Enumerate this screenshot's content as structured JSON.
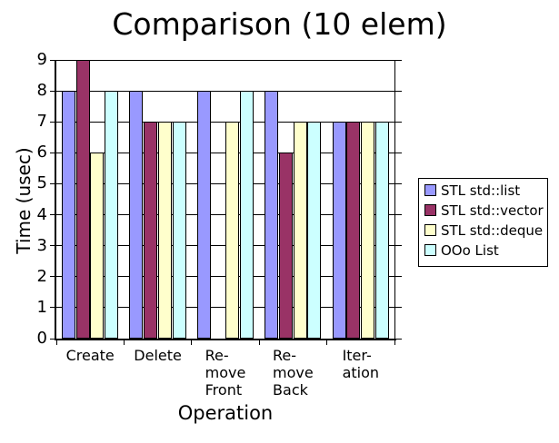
{
  "chart_data": {
    "type": "bar",
    "title": "Comparison (10 elem)",
    "xlabel": "Operation",
    "ylabel": "Time (usec)",
    "ylim": [
      0,
      9
    ],
    "y_ticks": [
      0,
      1,
      2,
      3,
      4,
      5,
      6,
      7,
      8,
      9
    ],
    "grid": "horizontal",
    "legend_position": "right",
    "categories": [
      "Create",
      "Delete",
      "Re-\nmove\nFront",
      "Re-\nmove\nBack",
      "Iter-\nation"
    ],
    "series": [
      {
        "name": "STL std::list",
        "color": "#9999FF",
        "values": [
          8,
          8,
          8,
          8,
          7
        ]
      },
      {
        "name": "STL std::vector",
        "color": "#993366",
        "values": [
          9,
          7,
          0,
          6,
          7
        ]
      },
      {
        "name": "STL std::deque",
        "color": "#FFFFCC",
        "values": [
          6,
          7,
          7,
          7,
          7
        ]
      },
      {
        "name": "OOo List",
        "color": "#CCFFFF",
        "values": [
          8,
          7,
          8,
          7,
          7
        ]
      }
    ],
    "colors": {
      "background": "#FFFFFF",
      "axis": "#000000",
      "bar_border": "#000000",
      "text": "#000000"
    }
  }
}
